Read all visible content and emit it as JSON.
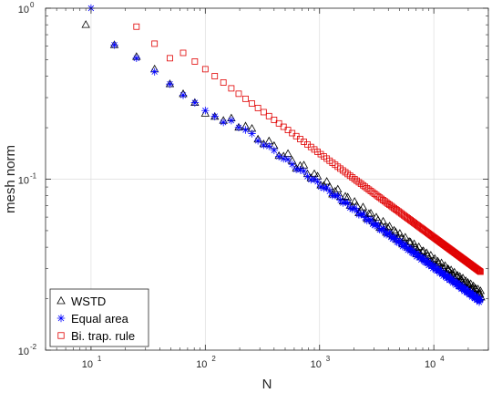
{
  "chart_data": {
    "type": "scatter",
    "title": "",
    "xlabel": "N",
    "ylabel": "mesh norm",
    "xscale": "log",
    "yscale": "log",
    "xlim": [
      4,
      30000
    ],
    "ylim": [
      0.01,
      1
    ],
    "grid": true,
    "legend_position": "bottom-left",
    "x_ticks": [
      {
        "base": "10",
        "exp": "1",
        "value": 10
      },
      {
        "base": "10",
        "exp": "2",
        "value": 100
      },
      {
        "base": "10",
        "exp": "3",
        "value": 1000
      },
      {
        "base": "10",
        "exp": "4",
        "value": 10000
      }
    ],
    "y_ticks": [
      {
        "base": "10",
        "exp": "-2",
        "value": 0.01
      },
      {
        "base": "10",
        "exp": "-1",
        "value": 0.1
      },
      {
        "base": "10",
        "exp": "0",
        "value": 1
      }
    ],
    "series": [
      {
        "name": "WSTD",
        "marker": "triangle",
        "color": "#000000",
        "nmin": 9,
        "nmax": 25921,
        "points": [
          [
            9,
            0.8
          ],
          [
            16,
            0.61
          ],
          [
            25,
            0.52
          ],
          [
            36,
            0.44
          ],
          [
            49,
            0.36
          ],
          [
            64,
            0.315
          ],
          [
            81,
            0.28
          ],
          [
            100,
            0.242
          ],
          [
            121,
            0.232
          ],
          [
            144,
            0.22
          ]
        ],
        "fit": {
          "coef": 2.63,
          "exp": -0.476
        },
        "wobble": 0.06
      },
      {
        "name": "Equal area",
        "marker": "asterisk",
        "color": "#0000ff",
        "nmin": 10,
        "nmax": 25900,
        "points": [
          [
            10,
            1.0
          ],
          [
            16,
            0.61
          ],
          [
            25,
            0.51
          ],
          [
            36,
            0.425
          ],
          [
            49,
            0.36
          ],
          [
            64,
            0.31
          ],
          [
            81,
            0.28
          ],
          [
            100,
            0.252
          ],
          [
            121,
            0.233
          ],
          [
            144,
            0.215
          ]
        ],
        "fit": {
          "coef": 2.66,
          "exp": -0.485
        },
        "wobble": 0.025
      },
      {
        "name": "Bi. trap. rule",
        "marker": "square",
        "color": "#e00000",
        "nmin": 25,
        "nmax": 25600,
        "points": [
          [
            25,
            0.78
          ],
          [
            36,
            0.62
          ],
          [
            49,
            0.51
          ]
        ],
        "fit": {
          "coef": 4.24,
          "exp": -0.492
        },
        "wobble": 0
      }
    ]
  }
}
